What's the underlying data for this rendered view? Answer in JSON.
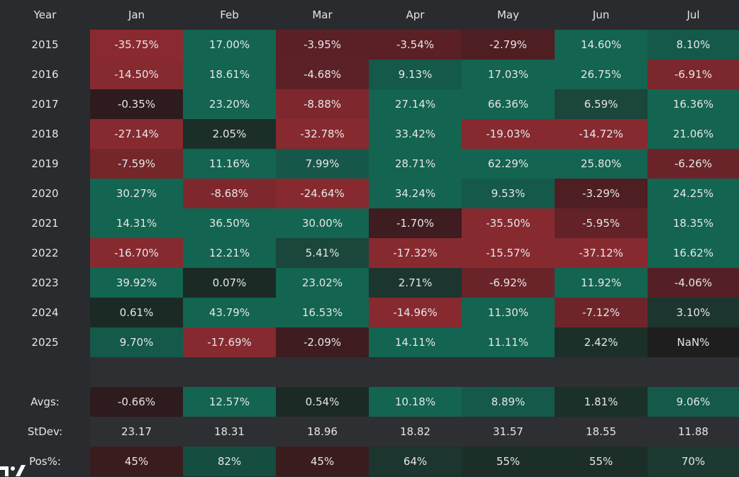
{
  "header": [
    "Year",
    "Jan",
    "Feb",
    "Mar",
    "Apr",
    "May",
    "Jun",
    "Jul"
  ],
  "rows": [
    {
      "year": "2015",
      "cells": [
        {
          "t": "-35.75%",
          "c": "#8a2a30"
        },
        {
          "t": "17.00%",
          "c": "#136450"
        },
        {
          "t": "-3.95%",
          "c": "#5a2025"
        },
        {
          "t": "-3.54%",
          "c": "#5a2025"
        },
        {
          "t": "-2.79%",
          "c": "#4e1e22"
        },
        {
          "t": "14.60%",
          "c": "#136450"
        },
        {
          "t": "8.10%",
          "c": "#15594a"
        }
      ]
    },
    {
      "year": "2016",
      "cells": [
        {
          "t": "-14.50%",
          "c": "#862a30"
        },
        {
          "t": "18.61%",
          "c": "#136450"
        },
        {
          "t": "-4.68%",
          "c": "#5c2126"
        },
        {
          "t": "9.13%",
          "c": "#14594a"
        },
        {
          "t": "17.03%",
          "c": "#136450"
        },
        {
          "t": "26.75%",
          "c": "#136450"
        },
        {
          "t": "-6.91%",
          "c": "#7a272d"
        }
      ]
    },
    {
      "year": "2017",
      "cells": [
        {
          "t": "-0.35%",
          "c": "#2e1b1d"
        },
        {
          "t": "23.20%",
          "c": "#136450"
        },
        {
          "t": "-8.88%",
          "c": "#7e282e"
        },
        {
          "t": "27.14%",
          "c": "#136450"
        },
        {
          "t": "66.36%",
          "c": "#136450"
        },
        {
          "t": "6.59%",
          "c": "#1a463c"
        },
        {
          "t": "16.36%",
          "c": "#136450"
        }
      ]
    },
    {
      "year": "2018",
      "cells": [
        {
          "t": "-27.14%",
          "c": "#862a30"
        },
        {
          "t": "2.05%",
          "c": "#1c2e28"
        },
        {
          "t": "-32.78%",
          "c": "#862a30"
        },
        {
          "t": "33.42%",
          "c": "#136450"
        },
        {
          "t": "-19.03%",
          "c": "#862a30"
        },
        {
          "t": "-14.72%",
          "c": "#862a30"
        },
        {
          "t": "21.06%",
          "c": "#136450"
        }
      ]
    },
    {
      "year": "2019",
      "cells": [
        {
          "t": "-7.59%",
          "c": "#742629"
        },
        {
          "t": "11.16%",
          "c": "#136450"
        },
        {
          "t": "7.99%",
          "c": "#17574a"
        },
        {
          "t": "28.71%",
          "c": "#136450"
        },
        {
          "t": "62.29%",
          "c": "#136450"
        },
        {
          "t": "25.80%",
          "c": "#136450"
        },
        {
          "t": "-6.26%",
          "c": "#6a2429"
        }
      ]
    },
    {
      "year": "2020",
      "cells": [
        {
          "t": "30.27%",
          "c": "#136450"
        },
        {
          "t": "-8.68%",
          "c": "#7e282e"
        },
        {
          "t": "-24.64%",
          "c": "#862a30"
        },
        {
          "t": "34.24%",
          "c": "#136450"
        },
        {
          "t": "9.53%",
          "c": "#14594a"
        },
        {
          "t": "-3.29%",
          "c": "#4e1e22"
        },
        {
          "t": "24.25%",
          "c": "#136450"
        }
      ]
    },
    {
      "year": "2021",
      "cells": [
        {
          "t": "14.31%",
          "c": "#136450"
        },
        {
          "t": "36.50%",
          "c": "#136450"
        },
        {
          "t": "30.00%",
          "c": "#136450"
        },
        {
          "t": "-1.70%",
          "c": "#3e1c1f"
        },
        {
          "t": "-35.50%",
          "c": "#862a30"
        },
        {
          "t": "-5.95%",
          "c": "#622227"
        },
        {
          "t": "18.35%",
          "c": "#136450"
        }
      ]
    },
    {
      "year": "2022",
      "cells": [
        {
          "t": "-16.70%",
          "c": "#862a30"
        },
        {
          "t": "12.21%",
          "c": "#136450"
        },
        {
          "t": "5.41%",
          "c": "#1a463c"
        },
        {
          "t": "-17.32%",
          "c": "#862a30"
        },
        {
          "t": "-15.57%",
          "c": "#862a30"
        },
        {
          "t": "-37.12%",
          "c": "#862a30"
        },
        {
          "t": "16.62%",
          "c": "#136450"
        }
      ]
    },
    {
      "year": "2023",
      "cells": [
        {
          "t": "39.92%",
          "c": "#136450"
        },
        {
          "t": "0.07%",
          "c": "#1b2a25"
        },
        {
          "t": "23.02%",
          "c": "#136450"
        },
        {
          "t": "2.71%",
          "c": "#1c352e"
        },
        {
          "t": "-6.92%",
          "c": "#6a2429"
        },
        {
          "t": "11.92%",
          "c": "#136450"
        },
        {
          "t": "-4.06%",
          "c": "#552025"
        }
      ]
    },
    {
      "year": "2024",
      "cells": [
        {
          "t": "0.61%",
          "c": "#1b2a25"
        },
        {
          "t": "43.79%",
          "c": "#136450"
        },
        {
          "t": "16.53%",
          "c": "#136450"
        },
        {
          "t": "-14.96%",
          "c": "#862a30"
        },
        {
          "t": "11.30%",
          "c": "#136450"
        },
        {
          "t": "-7.12%",
          "c": "#6e252a"
        },
        {
          "t": "3.10%",
          "c": "#1c352e"
        }
      ]
    },
    {
      "year": "2025",
      "cells": [
        {
          "t": "9.70%",
          "c": "#14594a"
        },
        {
          "t": "-17.69%",
          "c": "#862a30"
        },
        {
          "t": "-2.09%",
          "c": "#3e1c1f"
        },
        {
          "t": "14.11%",
          "c": "#136450"
        },
        {
          "t": "11.11%",
          "c": "#136450"
        },
        {
          "t": "2.42%",
          "c": "#1c302a"
        },
        {
          "t": "NaN%",
          "c": "#1e1e1e"
        }
      ]
    }
  ],
  "avgs": {
    "label": "Avgs:",
    "cells": [
      {
        "t": "-0.66%",
        "c": "#2e1b1d"
      },
      {
        "t": "12.57%",
        "c": "#136450"
      },
      {
        "t": "0.54%",
        "c": "#1b2a25"
      },
      {
        "t": "10.18%",
        "c": "#136450"
      },
      {
        "t": "8.89%",
        "c": "#14594a"
      },
      {
        "t": "1.81%",
        "c": "#1c302a"
      },
      {
        "t": "9.06%",
        "c": "#14594a"
      }
    ]
  },
  "stdev": {
    "label": "StDev:",
    "cells": [
      "23.17",
      "18.31",
      "18.96",
      "18.82",
      "31.57",
      "18.55",
      "11.88"
    ]
  },
  "pos": {
    "label": "Pos%:",
    "cells": [
      {
        "t": "45%",
        "c": "#3a1c1f"
      },
      {
        "t": "82%",
        "c": "#154d40"
      },
      {
        "t": "45%",
        "c": "#3a1c1f"
      },
      {
        "t": "64%",
        "c": "#1c352e"
      },
      {
        "t": "55%",
        "c": "#1c2e28"
      },
      {
        "t": "55%",
        "c": "#1c2e28"
      },
      {
        "t": "70%",
        "c": "#1c3a31"
      }
    ]
  },
  "logo_name": "tradingview-logo"
}
